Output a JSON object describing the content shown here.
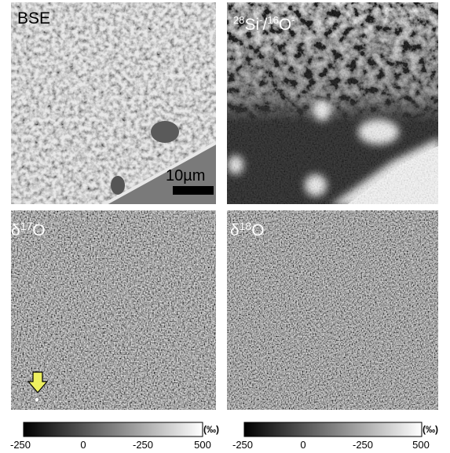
{
  "panels": [
    {
      "label": "BSE",
      "scale_bar": "10µm"
    },
    {
      "label": [
        "28",
        "Si",
        "-",
        "/",
        "16",
        "O",
        "-"
      ]
    },
    {
      "label": [
        "δ",
        "17",
        "O"
      ]
    },
    {
      "label": [
        "δ",
        "18",
        "O"
      ]
    }
  ],
  "colorbars": [
    {
      "ticks": [
        "-250",
        "0",
        "-250",
        "500"
      ],
      "unit": "(‰)"
    },
    {
      "ticks": [
        "-250",
        "0",
        "-250",
        "500"
      ],
      "unit": "(‰)"
    }
  ]
}
